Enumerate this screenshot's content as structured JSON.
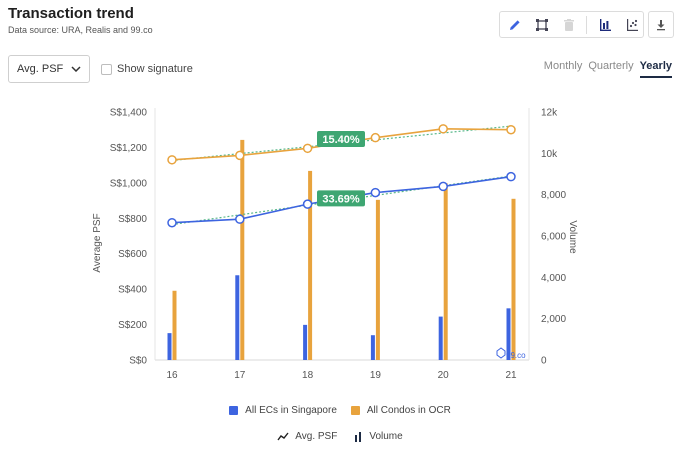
{
  "header": {
    "title": "Transaction trend",
    "source": "Data source: URA, Realis and 99.co"
  },
  "toolbar": {
    "icons": [
      "pencil-icon",
      "fit-screen-icon",
      "trash-icon",
      "bar-chart-icon",
      "scatter-chart-icon",
      "download-icon"
    ]
  },
  "controls": {
    "metric_select": "Avg. PSF",
    "show_signature": "Show signature",
    "periods": [
      "Monthly",
      "Quarterly",
      "Yearly"
    ],
    "active_period": "Yearly"
  },
  "chart_data": {
    "type": "bar+line",
    "categories": [
      "16",
      "17",
      "18",
      "19",
      "20",
      "21"
    ],
    "y_left": {
      "label": "Average PSF",
      "ticks": [
        "S$0",
        "S$200",
        "S$400",
        "S$600",
        "S$800",
        "S$1,000",
        "S$1,200",
        "S$1,400"
      ],
      "range": [
        0,
        1400
      ]
    },
    "y_right": {
      "label": "Volume",
      "ticks": [
        "0",
        "2,000",
        "4,000",
        "6,000",
        "8,000",
        "10k",
        "12k"
      ],
      "range": [
        0,
        12000
      ]
    },
    "bar_series": [
      {
        "name": "All ECs in Singapore",
        "color": "#3d64e0",
        "values": [
          1300,
          4100,
          1700,
          1200,
          2100,
          2500
        ]
      },
      {
        "name": "All Condos in OCR",
        "color": "#e8a33d",
        "values": [
          3350,
          10650,
          9150,
          7750,
          8550,
          7800
        ]
      }
    ],
    "line_series": [
      {
        "name": "All Condos in OCR",
        "color": "#e8a33d",
        "values": [
          1130,
          1155,
          1195,
          1255,
          1305,
          1300
        ]
      },
      {
        "name": "All ECs in Singapore",
        "color": "#3d64e0",
        "values": [
          775,
          795,
          880,
          945,
          980,
          1035
        ]
      }
    ],
    "annotations": [
      {
        "text": "15.40%",
        "series": "All Condos in OCR"
      },
      {
        "text": "33.69%",
        "series": "All ECs in Singapore"
      }
    ],
    "watermark": "99.co",
    "legend": {
      "series": [
        "All ECs in Singapore",
        "All Condos in OCR"
      ],
      "types": [
        "Avg. PSF",
        "Volume"
      ]
    }
  }
}
